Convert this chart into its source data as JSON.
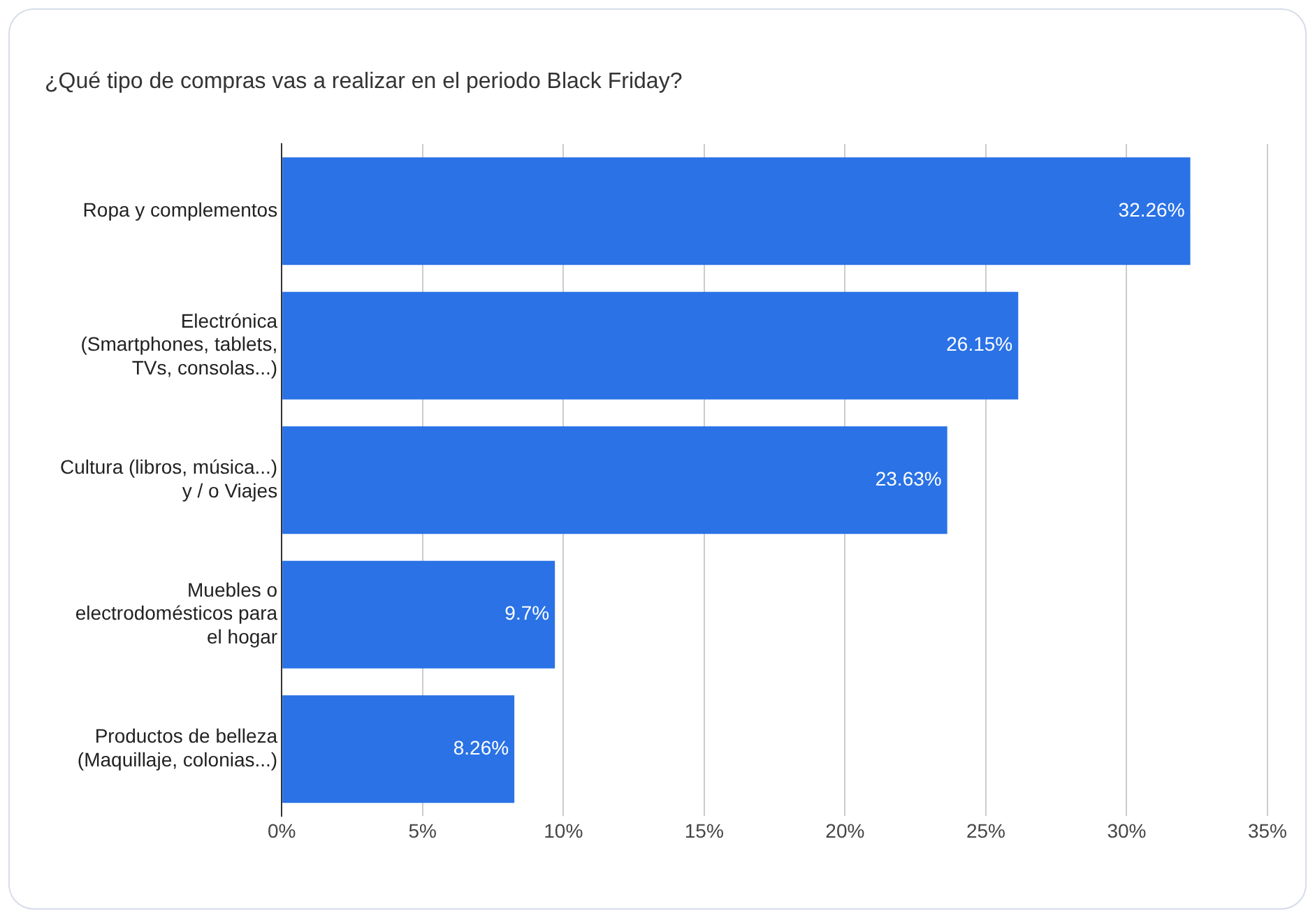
{
  "chart_data": {
    "type": "bar",
    "orientation": "horizontal",
    "title": "¿Qué tipo de compras vas a realizar en el periodo Black Friday?",
    "categories": [
      "Ropa y complementos",
      "Electrónica\n(Smartphones, tablets,\nTVs, consolas...)",
      "Cultura (libros, música...)\ny / o Viajes",
      "Muebles o\nelectrodomésticos para\nel hogar",
      "Productos de belleza\n(Maquillaje, colonias...)"
    ],
    "values": [
      32.26,
      26.15,
      23.63,
      9.7,
      8.26
    ],
    "value_labels": [
      "32.26%",
      "26.15%",
      "23.63%",
      "9.7%",
      "8.26%"
    ],
    "color": "#2a72e6",
    "xlim": [
      0,
      35
    ],
    "xticks": [
      {
        "value": 0,
        "label": "0%"
      },
      {
        "value": 5,
        "label": "5%"
      },
      {
        "value": 10,
        "label": "10%"
      },
      {
        "value": 15,
        "label": "15%"
      },
      {
        "value": 20,
        "label": "20%"
      },
      {
        "value": 25,
        "label": "25%"
      },
      {
        "value": 30,
        "label": "30%"
      },
      {
        "value": 35,
        "label": "35%"
      }
    ],
    "grid": "x",
    "legend": false
  }
}
